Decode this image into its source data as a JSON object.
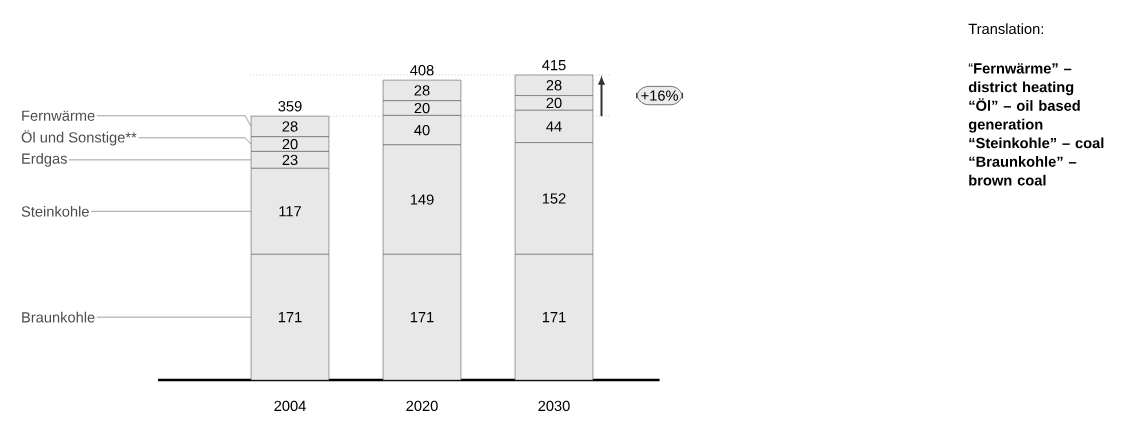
{
  "chart_data": {
    "type": "bar",
    "stacked": true,
    "data_labels": true,
    "legend": false,
    "tick_labels": "x",
    "categories": [
      "2004",
      "2020",
      "2030"
    ],
    "series": [
      {
        "name": "Braunkohle",
        "color": "#e8e8e8",
        "values": [
          171,
          171,
          171
        ]
      },
      {
        "name": "Steinkohle",
        "color": "#e8e8e8",
        "values": [
          117,
          149,
          152
        ]
      },
      {
        "name": "Erdgas",
        "color": "#e8e8e8",
        "values": [
          23,
          40,
          44
        ]
      },
      {
        "name": "Öl und Sonstige**",
        "color": "#e8e8e8",
        "values": [
          20,
          20,
          20
        ]
      },
      {
        "name": "Fernwärme",
        "color": "#e8e8e8",
        "values": [
          28,
          28,
          28
        ]
      }
    ],
    "totals": [
      "359",
      "408",
      "415"
    ],
    "ref_lines": [
      {
        "axis": "y",
        "value": 359,
        "line_style": "dotted"
      },
      {
        "axis": "y",
        "value": 415,
        "line_style": "dotted"
      }
    ],
    "annotations": [
      "+16%",
      "Translation:",
      "“**Fernwärme” – district heating “Öl” – oil based generation “Steinkohle” – coal “Braunkohle” – brown coal**"
    ]
  }
}
